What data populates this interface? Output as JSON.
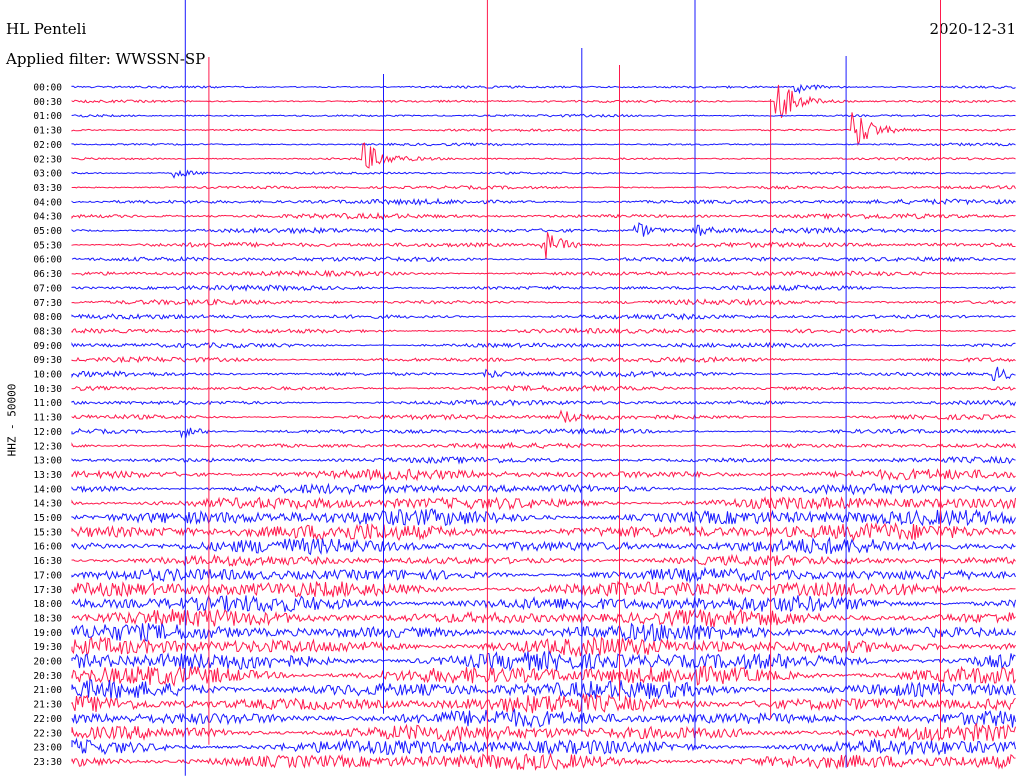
{
  "header": {
    "station": "HL Penteli",
    "filter": "Applied filter: WWSSN-SP",
    "date": "2020-12-31"
  },
  "channel_label": "HHZ - 50000",
  "colors": {
    "trace_a": "#1a1aff",
    "trace_b": "#ff1a4d",
    "background": "#ffffff"
  },
  "chart_data": {
    "type": "line",
    "title": "HL Penteli",
    "subtitle": "Applied filter: WWSSN-SP",
    "date": "2020-12-31",
    "ylabel": "HHZ - 50000",
    "xlabel": "",
    "row_labels": [
      "00:00",
      "00:30",
      "01:00",
      "01:30",
      "02:00",
      "02:30",
      "03:00",
      "03:30",
      "04:00",
      "04:30",
      "05:00",
      "05:30",
      "06:00",
      "06:30",
      "07:00",
      "07:30",
      "08:00",
      "08:30",
      "09:00",
      "09:30",
      "10:00",
      "10:30",
      "11:00",
      "11:30",
      "12:00",
      "12:30",
      "13:00",
      "13:30",
      "14:00",
      "14:30",
      "15:00",
      "15:30",
      "16:00",
      "16:30",
      "17:00",
      "17:30",
      "18:00",
      "18:30",
      "19:00",
      "19:30",
      "20:00",
      "20:30",
      "21:00",
      "21:30",
      "22:00",
      "22:30",
      "23:00",
      "23:30"
    ],
    "series_colors_alternating": [
      "blue",
      "red"
    ],
    "noise_level": [
      0.15,
      0.15,
      0.15,
      0.15,
      0.15,
      0.15,
      0.15,
      0.2,
      0.3,
      0.3,
      0.3,
      0.3,
      0.3,
      0.3,
      0.3,
      0.3,
      0.3,
      0.3,
      0.3,
      0.3,
      0.3,
      0.3,
      0.3,
      0.3,
      0.3,
      0.3,
      0.35,
      0.6,
      0.6,
      0.8,
      1.0,
      1.0,
      0.9,
      0.6,
      0.8,
      1.0,
      1.0,
      1.0,
      1.0,
      1.1,
      1.2,
      1.2,
      1.1,
      1.1,
      1.0,
      1.0,
      1.0,
      1.0
    ],
    "events": [
      {
        "row": 0,
        "position": 0.77,
        "amplitude": 1.0
      },
      {
        "row": 1,
        "position": 0.75,
        "amplitude": 4.0
      },
      {
        "row": 3,
        "position": 0.83,
        "amplitude": 4.0
      },
      {
        "row": 5,
        "position": 0.31,
        "amplitude": 3.0
      },
      {
        "row": 6,
        "position": 0.11,
        "amplitude": 0.8
      },
      {
        "row": 10,
        "position": 0.6,
        "amplitude": 1.5
      },
      {
        "row": 10,
        "position": 0.66,
        "amplitude": 1.2
      },
      {
        "row": 11,
        "position": 0.5,
        "amplitude": 3.0
      },
      {
        "row": 20,
        "position": 0.44,
        "amplitude": 0.8
      },
      {
        "row": 20,
        "position": 0.98,
        "amplitude": 1.2
      },
      {
        "row": 23,
        "position": 0.52,
        "amplitude": 1.2
      },
      {
        "row": 24,
        "position": 0.12,
        "amplitude": 1.0
      }
    ],
    "spikes": [
      0.12,
      0.145,
      0.33,
      0.44,
      0.54,
      0.58,
      0.66,
      0.74,
      0.82,
      0.92
    ]
  }
}
